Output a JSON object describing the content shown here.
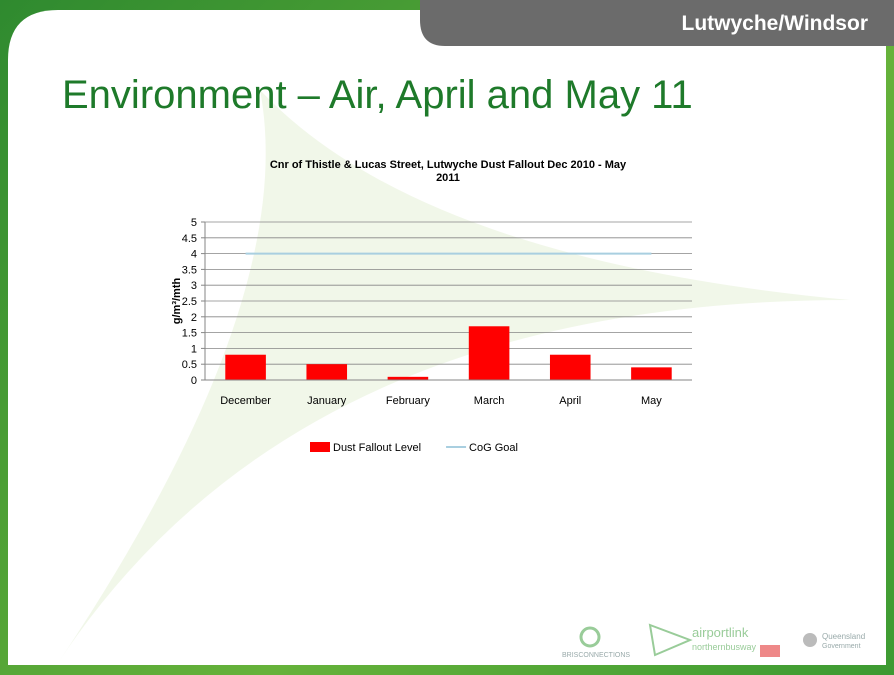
{
  "header": {
    "location": "Lutwyche/Windsor",
    "title": "Environment – Air, April and May 11"
  },
  "footer": {
    "logos": [
      "BRISCONNECTIONS",
      "airportlink",
      "northernbusway",
      "Queensland",
      "Government"
    ]
  },
  "chart_data": {
    "type": "bar",
    "title": "Cnr of Thistle & Lucas Street, Lutwyche Dust Fallout Dec 2010 - May 2011",
    "ylabel": "g/m³/mth",
    "categories": [
      "December",
      "January",
      "February",
      "March",
      "April",
      "May"
    ],
    "series": [
      {
        "name": "Dust Fallout Level",
        "type": "bar",
        "color": "#ff0000",
        "values": [
          0.8,
          0.5,
          0.1,
          1.7,
          0.8,
          0.4
        ]
      },
      {
        "name": "CoG Goal",
        "type": "line",
        "color": "#a9cfe0",
        "values": [
          4,
          4,
          4,
          4,
          4,
          4
        ]
      }
    ],
    "ylim": [
      0,
      5
    ],
    "yticks": [
      0,
      0.5,
      1,
      1.5,
      2,
      2.5,
      3,
      3.5,
      4,
      4.5,
      5
    ],
    "grid": true,
    "legend": "bottom"
  }
}
